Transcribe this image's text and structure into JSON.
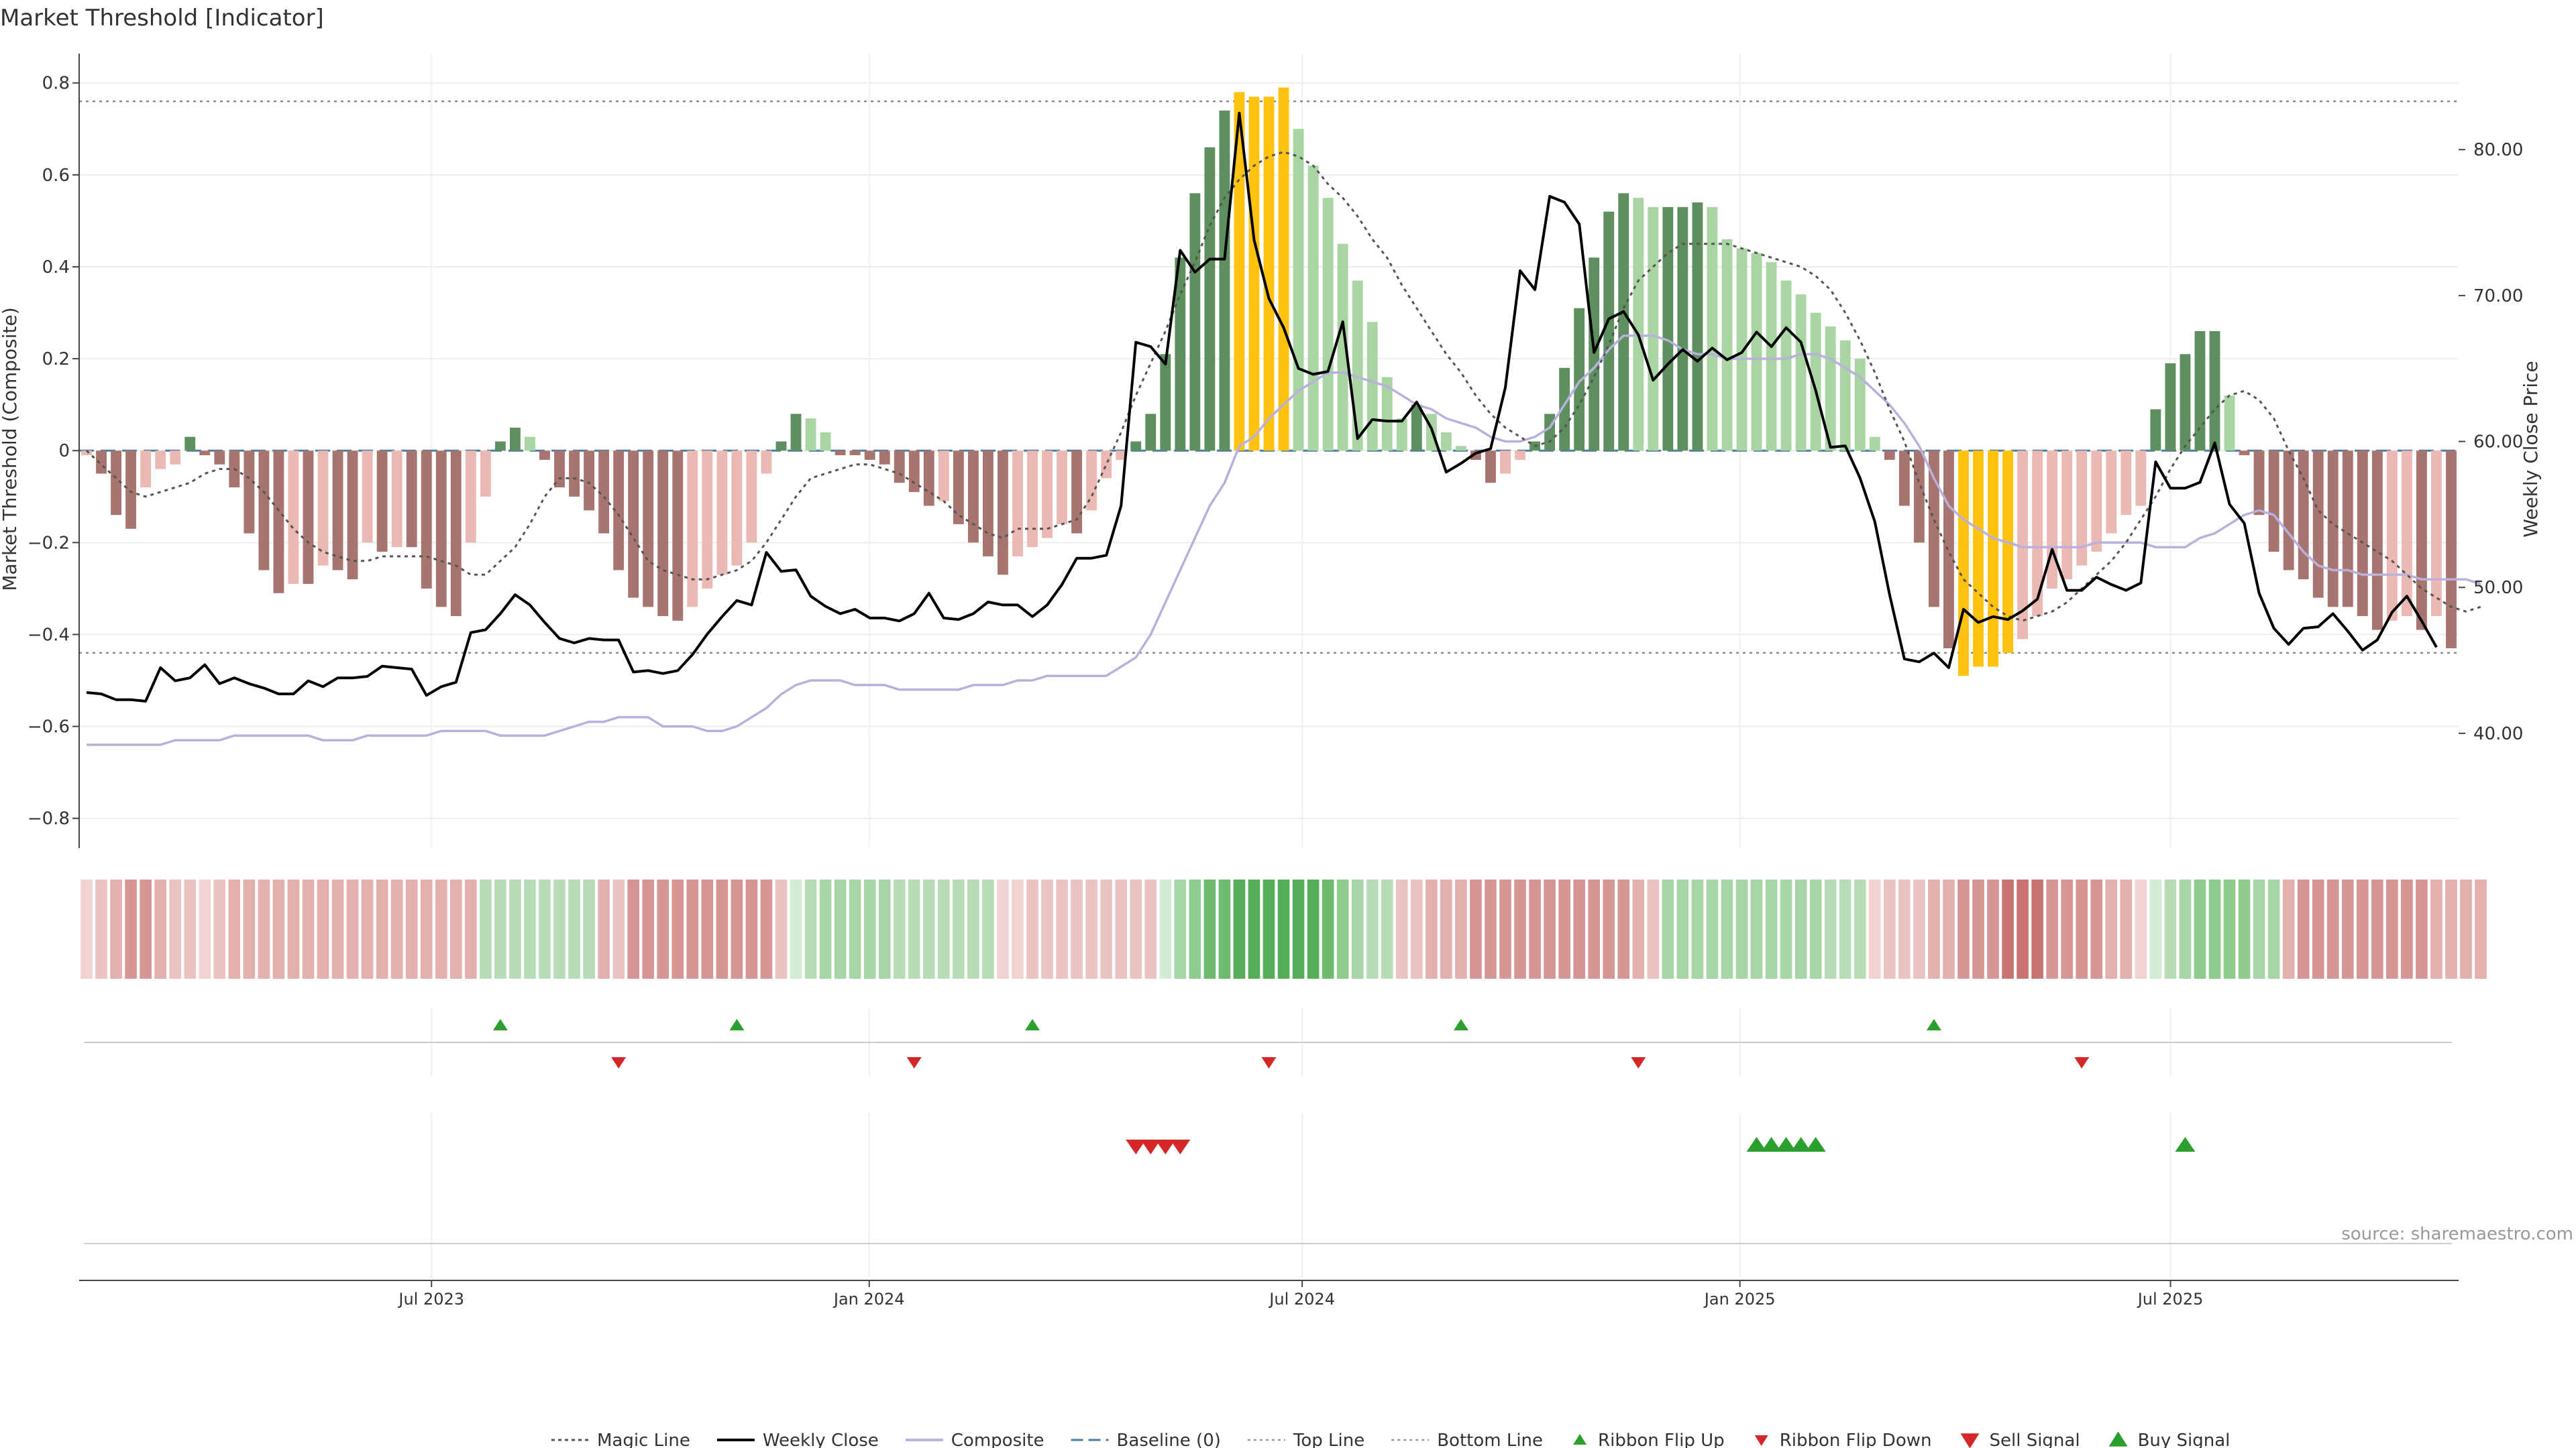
{
  "chart_data": {
    "type": "bar",
    "title": "Market Threshold [Indicator]",
    "ylabel": "Market Threshold (Composite)",
    "y2label": "Weekly Close Price",
    "ylim": [
      -0.85,
      0.82
    ],
    "y2lim": [
      32.6,
      85.2
    ],
    "yticks": [
      "0.8",
      "0.6",
      "0.4",
      "0.2",
      "0",
      "−0.2",
      "−0.4",
      "−0.6",
      "−0.8"
    ],
    "y2ticks": [
      "80.00",
      "70.00",
      "60.00",
      "50.00",
      "40.00"
    ],
    "xticks": [
      "Jul 2023",
      "Jan 2024",
      "Jul 2024",
      "Jan 2025",
      "Jul 2025"
    ],
    "x_start": "2023-02-06",
    "x_end": "2025-10-27",
    "xtick_dates": [
      "2023-07-01",
      "2024-01-01",
      "2024-07-01",
      "2025-01-01",
      "2025-07-01"
    ],
    "top_line": 0.76,
    "bottom_line": -0.44,
    "baseline": 0,
    "grid": true,
    "legend_position": "bottom",
    "source": "source: sharemaestro.com",
    "legend": [
      "Magic Line",
      "Weekly Close",
      "Composite",
      "Baseline (0)",
      "Top Line",
      "Bottom Line",
      "Ribbon Flip Up",
      "Ribbon Flip Down",
      "Sell Signal",
      "Buy Signal"
    ],
    "colors": {
      "positive_strong": "#5e8f5e",
      "positive_weak": "#a8d5a2",
      "negative_strong": "#a87470",
      "negative_weak": "#ecb8b4",
      "extreme": "#ffc20e",
      "weekly_close": "#000000",
      "composite": "#b9b0dc",
      "magic_line": "#555555",
      "baseline": "#4a7fa0",
      "up_marker": "#2ca02c",
      "down_marker": "#d62728"
    },
    "composite_bars": [
      -0.01,
      -0.05,
      -0.14,
      -0.17,
      -0.08,
      -0.04,
      -0.03,
      0.03,
      -0.01,
      -0.03,
      -0.08,
      -0.18,
      -0.26,
      -0.31,
      -0.29,
      -0.29,
      -0.25,
      -0.26,
      -0.28,
      -0.2,
      -0.22,
      -0.21,
      -0.21,
      -0.3,
      -0.34,
      -0.36,
      -0.2,
      -0.1,
      0.02,
      0.05,
      0.03,
      -0.02,
      -0.08,
      -0.1,
      -0.13,
      -0.18,
      -0.26,
      -0.32,
      -0.34,
      -0.36,
      -0.37,
      -0.34,
      -0.3,
      -0.27,
      -0.25,
      -0.2,
      -0.05,
      0.02,
      0.08,
      0.07,
      0.04,
      -0.01,
      -0.01,
      -0.02,
      -0.03,
      -0.07,
      -0.09,
      -0.12,
      -0.11,
      -0.16,
      -0.2,
      -0.23,
      -0.27,
      -0.23,
      -0.21,
      -0.19,
      -0.16,
      -0.18,
      -0.13,
      -0.06,
      -0.02,
      0.02,
      0.08,
      0.21,
      0.42,
      0.56,
      0.66,
      0.74,
      0.78,
      0.77,
      0.77,
      0.79,
      0.7,
      0.62,
      0.55,
      0.45,
      0.37,
      0.28,
      0.16,
      0.07,
      0.1,
      0.08,
      0.04,
      0.01,
      -0.02,
      -0.07,
      -0.05,
      -0.02,
      0.02,
      0.08,
      0.18,
      0.31,
      0.42,
      0.52,
      0.56,
      0.55,
      0.53,
      0.53,
      0.53,
      0.54,
      0.53,
      0.46,
      0.44,
      0.43,
      0.41,
      0.37,
      0.34,
      0.3,
      0.27,
      0.24,
      0.2,
      0.03,
      -0.02,
      -0.12,
      -0.2,
      -0.34,
      -0.43,
      -0.49,
      -0.47,
      -0.47,
      -0.44,
      -0.41,
      -0.36,
      -0.3,
      -0.28,
      -0.25,
      -0.22,
      -0.18,
      -0.14,
      -0.12,
      0.09,
      0.19,
      0.21,
      0.26,
      0.26,
      0.12,
      -0.01,
      -0.14,
      -0.22,
      -0.26,
      -0.28,
      -0.32,
      -0.34,
      -0.34,
      -0.36,
      -0.39,
      -0.37,
      -0.36,
      -0.39,
      -0.36,
      -0.43
    ],
    "weekly_close": [
      42.8,
      42.7,
      42.3,
      42.3,
      42.2,
      44.5,
      43.6,
      43.8,
      44.7,
      43.4,
      43.8,
      43.4,
      43.1,
      42.7,
      42.7,
      43.6,
      43.2,
      43.8,
      43.8,
      43.9,
      44.6,
      44.5,
      44.4,
      42.6,
      43.2,
      43.5,
      46.9,
      47.1,
      48.2,
      49.5,
      48.8,
      47.6,
      46.5,
      46.2,
      46.5,
      46.4,
      46.4,
      44.2,
      44.3,
      44.1,
      44.3,
      45.4,
      46.8,
      48.0,
      49.1,
      48.8,
      52.4,
      51.1,
      51.2,
      49.4,
      48.7,
      48.2,
      48.5,
      47.9,
      47.9,
      47.7,
      48.2,
      49.6,
      47.9,
      47.8,
      48.2,
      49.0,
      48.8,
      48.8,
      48.0,
      48.8,
      50.2,
      52.0,
      52.0,
      52.2,
      55.6,
      66.8,
      66.5,
      65.3,
      73.1,
      71.6,
      72.5,
      72.5,
      82.5,
      73.8,
      69.8,
      67.8,
      65.0,
      64.6,
      64.8,
      68.2,
      60.2,
      61.5,
      61.4,
      61.4,
      62.7,
      60.9,
      57.9,
      58.5,
      59.2,
      59.5,
      63.7,
      71.7,
      70.4,
      76.8,
      76.4,
      74.9,
      66.1,
      68.4,
      68.9,
      67.3,
      64.2,
      65.3,
      66.3,
      65.5,
      66.4,
      65.6,
      66.1,
      67.5,
      66.5,
      67.8,
      66.8,
      63.5,
      59.6,
      59.7,
      57.5,
      54.5,
      49.5,
      45.1,
      44.9,
      45.5,
      44.5,
      48.5,
      47.6,
      48.0,
      47.8,
      48.4,
      49.2,
      52.6,
      49.8,
      49.8,
      50.7,
      50.2,
      49.8,
      50.3,
      58.6,
      56.8,
      56.8,
      57.2,
      59.9,
      55.7,
      54.4,
      49.6,
      47.2,
      46.1,
      47.2,
      47.3,
      48.2,
      47.0,
      45.7,
      46.4,
      48.3,
      49.4,
      47.7,
      45.9
    ],
    "magic_line": [
      0.0,
      -0.03,
      -0.06,
      -0.09,
      -0.1,
      -0.09,
      -0.08,
      -0.07,
      -0.05,
      -0.04,
      -0.04,
      -0.06,
      -0.09,
      -0.13,
      -0.17,
      -0.2,
      -0.22,
      -0.23,
      -0.24,
      -0.24,
      -0.23,
      -0.23,
      -0.23,
      -0.23,
      -0.24,
      -0.25,
      -0.27,
      -0.27,
      -0.24,
      -0.21,
      -0.16,
      -0.1,
      -0.06,
      -0.06,
      -0.07,
      -0.1,
      -0.14,
      -0.19,
      -0.24,
      -0.26,
      -0.27,
      -0.28,
      -0.28,
      -0.27,
      -0.26,
      -0.24,
      -0.2,
      -0.15,
      -0.1,
      -0.06,
      -0.05,
      -0.04,
      -0.03,
      -0.03,
      -0.04,
      -0.05,
      -0.07,
      -0.09,
      -0.11,
      -0.14,
      -0.16,
      -0.18,
      -0.19,
      -0.17,
      -0.17,
      -0.17,
      -0.16,
      -0.15,
      -0.1,
      -0.03,
      0.04,
      0.12,
      0.19,
      0.26,
      0.34,
      0.41,
      0.49,
      0.55,
      0.59,
      0.62,
      0.64,
      0.65,
      0.64,
      0.62,
      0.58,
      0.55,
      0.51,
      0.46,
      0.42,
      0.36,
      0.31,
      0.26,
      0.21,
      0.17,
      0.12,
      0.08,
      0.05,
      0.03,
      0.01,
      0.02,
      0.05,
      0.1,
      0.16,
      0.23,
      0.31,
      0.37,
      0.4,
      0.43,
      0.45,
      0.45,
      0.45,
      0.45,
      0.44,
      0.43,
      0.42,
      0.41,
      0.4,
      0.38,
      0.35,
      0.3,
      0.24,
      0.17,
      0.09,
      0.02,
      -0.07,
      -0.15,
      -0.22,
      -0.28,
      -0.31,
      -0.34,
      -0.36,
      -0.37,
      -0.36,
      -0.35,
      -0.33,
      -0.3,
      -0.27,
      -0.24,
      -0.2,
      -0.15,
      -0.1,
      -0.04,
      0.01,
      0.05,
      0.09,
      0.12,
      0.13,
      0.11,
      0.07,
      0.0,
      -0.06,
      -0.13,
      -0.16,
      -0.18,
      -0.2,
      -0.22,
      -0.24,
      -0.27,
      -0.3,
      -0.32,
      -0.34,
      -0.35,
      -0.34
    ],
    "composite_line": [
      -0.64,
      -0.64,
      -0.64,
      -0.64,
      -0.64,
      -0.64,
      -0.63,
      -0.63,
      -0.63,
      -0.63,
      -0.62,
      -0.62,
      -0.62,
      -0.62,
      -0.62,
      -0.62,
      -0.63,
      -0.63,
      -0.63,
      -0.62,
      -0.62,
      -0.62,
      -0.62,
      -0.62,
      -0.61,
      -0.61,
      -0.61,
      -0.61,
      -0.62,
      -0.62,
      -0.62,
      -0.62,
      -0.61,
      -0.6,
      -0.59,
      -0.59,
      -0.58,
      -0.58,
      -0.58,
      -0.6,
      -0.6,
      -0.6,
      -0.61,
      -0.61,
      -0.6,
      -0.58,
      -0.56,
      -0.53,
      -0.51,
      -0.5,
      -0.5,
      -0.5,
      -0.51,
      -0.51,
      -0.51,
      -0.52,
      -0.52,
      -0.52,
      -0.52,
      -0.52,
      -0.51,
      -0.51,
      -0.51,
      -0.5,
      -0.5,
      -0.49,
      -0.49,
      -0.49,
      -0.49,
      -0.49,
      -0.47,
      -0.45,
      -0.4,
      -0.33,
      -0.26,
      -0.19,
      -0.12,
      -0.07,
      0.01,
      0.03,
      0.07,
      0.1,
      0.13,
      0.15,
      0.17,
      0.17,
      0.16,
      0.15,
      0.14,
      0.12,
      0.1,
      0.09,
      0.07,
      0.06,
      0.05,
      0.03,
      0.02,
      0.02,
      0.03,
      0.05,
      0.1,
      0.15,
      0.18,
      0.22,
      0.25,
      0.25,
      0.25,
      0.24,
      0.22,
      0.21,
      0.21,
      0.2,
      0.2,
      0.2,
      0.2,
      0.2,
      0.21,
      0.21,
      0.2,
      0.18,
      0.16,
      0.13,
      0.1,
      0.06,
      0.01,
      -0.06,
      -0.12,
      -0.15,
      -0.17,
      -0.19,
      -0.2,
      -0.21,
      -0.21,
      -0.21,
      -0.21,
      -0.21,
      -0.2,
      -0.2,
      -0.2,
      -0.2,
      -0.21,
      -0.21,
      -0.21,
      -0.19,
      -0.18,
      -0.16,
      -0.14,
      -0.13,
      -0.14,
      -0.18,
      -0.22,
      -0.25,
      -0.26,
      -0.26,
      -0.27,
      -0.27,
      -0.27,
      -0.27,
      -0.28,
      -0.28,
      -0.28,
      -0.28,
      -0.29
    ],
    "ribbon_colors": [
      "#f1d3d1",
      "#eac4c2",
      "#e4b0ae",
      "#d69693",
      "#d69693",
      "#e4b0ae",
      "#eac4c2",
      "#eac4c2",
      "#f1d3d1",
      "#eac4c2",
      "#e4b0ae",
      "#e4b0ae",
      "#e4b0ae",
      "#e4b0ae",
      "#e4b0ae",
      "#e4b0ae",
      "#e4b0ae",
      "#e4b0ae",
      "#e4b0ae",
      "#e4b0ae",
      "#e4b0ae",
      "#e4b0ae",
      "#e4b0ae",
      "#e4b0ae",
      "#e4b0ae",
      "#e4b0ae",
      "#e4b0ae",
      "#b7dcb6",
      "#b7dcb6",
      "#b7dcb6",
      "#b7dcb6",
      "#b7dcb6",
      "#b7dcb6",
      "#b7dcb6",
      "#b7dcb6",
      "#e4b0ae",
      "#eac4c2",
      "#d69693",
      "#d69693",
      "#d69693",
      "#d69693",
      "#d69693",
      "#d69693",
      "#d69693",
      "#d69693",
      "#d69693",
      "#d69693",
      "#eac4c2",
      "#d4ebd3",
      "#b7dcb6",
      "#a7d5a5",
      "#a7d5a5",
      "#a7d5a5",
      "#a7d5a5",
      "#a7d5a5",
      "#b7dcb6",
      "#b7dcb6",
      "#b7dcb6",
      "#b7dcb6",
      "#b7dcb6",
      "#b7dcb6",
      "#b7dcb6",
      "#f1d3d1",
      "#f1d3d1",
      "#eac4c2",
      "#eac4c2",
      "#eac4c2",
      "#eac4c2",
      "#eac4c2",
      "#eac4c2",
      "#eac4c2",
      "#eac4c2",
      "#eac4c2",
      "#d4ebd3",
      "#a7d5a5",
      "#8ecb8d",
      "#6eba6e",
      "#6eba6e",
      "#55ae57",
      "#55ae57",
      "#55ae57",
      "#55ae57",
      "#55ae57",
      "#55ae57",
      "#6eba6e",
      "#8ecb8d",
      "#a7d5a5",
      "#b7dcb6",
      "#b7dcb6",
      "#eac4c2",
      "#eac4c2",
      "#e4b0ae",
      "#e4b0ae",
      "#e4b0ae",
      "#d69693",
      "#d69693",
      "#d69693",
      "#d69693",
      "#d69693",
      "#d69693",
      "#d69693",
      "#d69693",
      "#d69693",
      "#d69693",
      "#d69693",
      "#e4b0ae",
      "#eac4c2",
      "#a7d5a5",
      "#a7d5a5",
      "#a7d5a5",
      "#a7d5a5",
      "#a7d5a5",
      "#a7d5a5",
      "#a7d5a5",
      "#a7d5a5",
      "#a7d5a5",
      "#a7d5a5",
      "#a7d5a5",
      "#b7dcb6",
      "#b7dcb6",
      "#b7dcb6",
      "#f1d3d1",
      "#eac4c2",
      "#eac4c2",
      "#eac4c2",
      "#e4b0ae",
      "#e4b0ae",
      "#d69693",
      "#d69693",
      "#d69693",
      "#c87470",
      "#c87470",
      "#c87470",
      "#d69693",
      "#d69693",
      "#d69693",
      "#d69693",
      "#e4b0ae",
      "#e4b0ae",
      "#f1d3d1",
      "#d4ebd3",
      "#b7dcb6",
      "#a7d5a5",
      "#8ecb8d",
      "#8ecb8d",
      "#8ecb8d",
      "#8ecb8d",
      "#a7d5a5",
      "#a7d5a5",
      "#e4b0ae",
      "#d69693",
      "#d69693",
      "#d69693",
      "#d69693",
      "#d69693",
      "#d69693",
      "#d69693",
      "#d69693",
      "#d69693",
      "#e4b0ae",
      "#e4b0ae",
      "#e4b0ae",
      "#e4b0ae"
    ],
    "ribbon_flip_up": [
      28,
      44,
      64,
      93,
      125
    ],
    "ribbon_flip_down": [
      36,
      56,
      80,
      105,
      135
    ],
    "sell_signal": [
      71,
      72,
      73,
      74
    ],
    "buy_signal": [
      113,
      114,
      115,
      116,
      117,
      142
    ]
  }
}
